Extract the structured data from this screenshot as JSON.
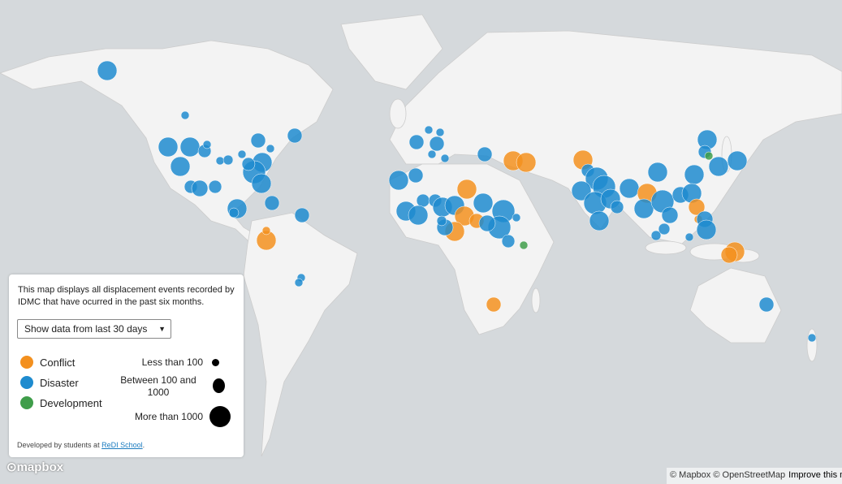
{
  "panel": {
    "description": "This map displays all displacement events recorded by IDMC that have ocurred in the past six months.",
    "select_option": "Show data from last 30 days",
    "types": [
      {
        "label": "Conflict",
        "color": "#f3901f"
      },
      {
        "label": "Disaster",
        "color": "#1e8bcf"
      },
      {
        "label": "Development",
        "color": "#3f9d4a"
      }
    ],
    "sizes": [
      {
        "label": "Less than 100"
      },
      {
        "label": "Between 100 and 1000"
      },
      {
        "label": "More than 1000"
      }
    ],
    "credit": "Developed by students at",
    "credit_link": "ReDI School"
  },
  "attribution": {
    "logo": "mapbox",
    "text": "© Mapbox © OpenStreetMap",
    "improve": "Improve this map"
  }
}
